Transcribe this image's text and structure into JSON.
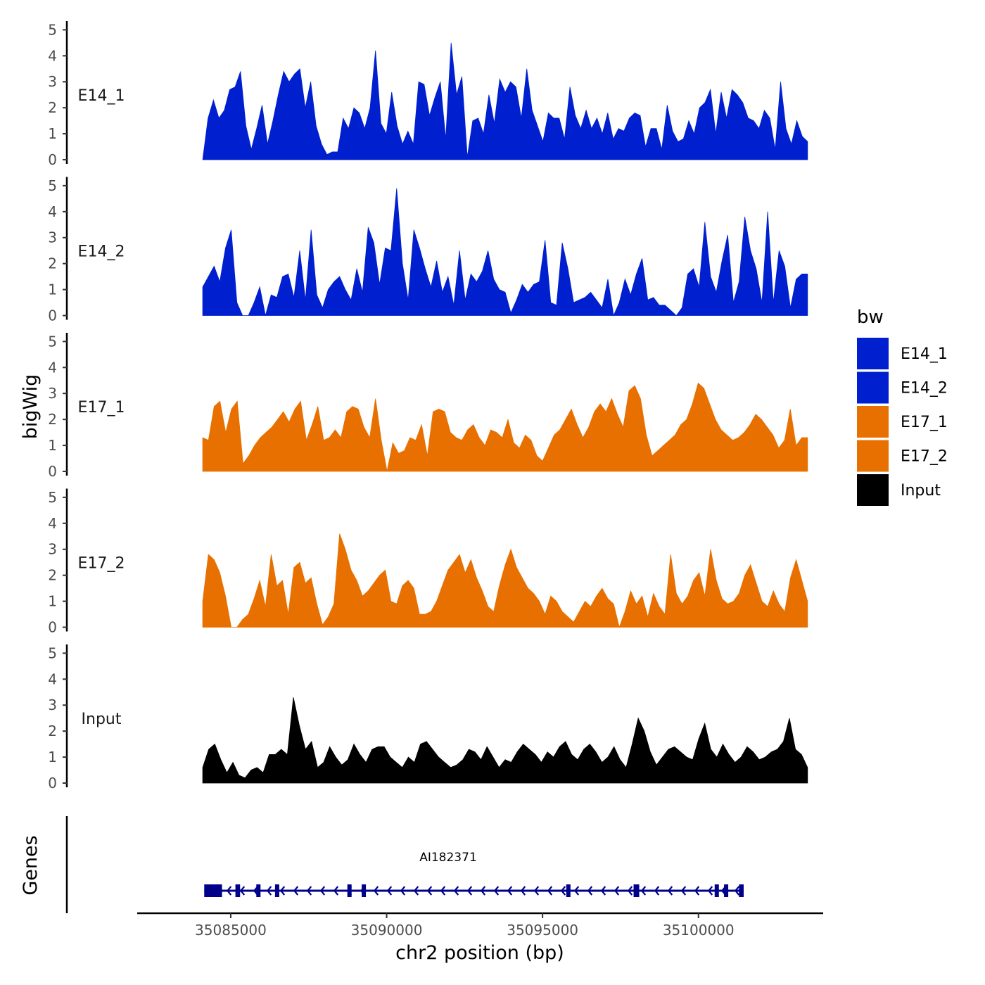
{
  "chart_data": {
    "type": "area",
    "chromosome": "chr2",
    "xlim": [
      35082000,
      35104000
    ],
    "region": [
      35084100,
      35103500
    ],
    "x_ticks": [
      35085000,
      35090000,
      35095000,
      35100000
    ],
    "x_tick_labels": [
      "35085000",
      "35090000",
      "35095000",
      "35100000"
    ],
    "xlabel": "chr2 position (bp)",
    "ylabel": "bigWig",
    "ylim": [
      0,
      5.2
    ],
    "y_ticks": [
      0,
      1,
      2,
      3,
      4,
      5
    ],
    "y_tick_labels": [
      "0",
      "1",
      "2",
      "3",
      "4",
      "5"
    ],
    "legend_title": "bw",
    "series": [
      {
        "name": "E14_1",
        "color": "#0020D0",
        "values": [
          0.0,
          1.6,
          2.3,
          1.6,
          1.9,
          2.7,
          2.8,
          3.4,
          1.3,
          0.4,
          1.2,
          2.1,
          0.6,
          1.5,
          2.5,
          3.4,
          3.0,
          3.3,
          3.5,
          2.0,
          3.0,
          1.3,
          0.6,
          0.2,
          0.3,
          0.3,
          1.6,
          1.2,
          2.0,
          1.8,
          1.2,
          2.0,
          4.2,
          1.4,
          1.0,
          2.6,
          1.3,
          0.6,
          1.1,
          0.6,
          3.0,
          2.9,
          1.7,
          2.4,
          3.0,
          0.8,
          4.5,
          2.5,
          3.2,
          0.1,
          1.5,
          1.6,
          1.0,
          2.5,
          1.4,
          3.1,
          2.6,
          3.0,
          2.8,
          1.6,
          3.5,
          1.9,
          1.3,
          0.7,
          1.8,
          1.6,
          1.6,
          0.8,
          2.8,
          1.7,
          1.2,
          1.9,
          1.2,
          1.6,
          1.0,
          1.8,
          0.8,
          1.2,
          1.1,
          1.6,
          1.8,
          1.7,
          0.5,
          1.2,
          1.2,
          0.4,
          2.1,
          1.1,
          0.7,
          0.8,
          1.5,
          1.0,
          2.0,
          2.2,
          2.7,
          1.0,
          2.6,
          1.6,
          2.7,
          2.5,
          2.2,
          1.6,
          1.5,
          1.2,
          1.9,
          1.6,
          0.4,
          3.0,
          1.2,
          0.6,
          1.5,
          0.9,
          0.7
        ]
      },
      {
        "name": "E14_2",
        "color": "#0020D0",
        "values": [
          1.1,
          1.5,
          1.9,
          1.3,
          2.6,
          3.3,
          0.5,
          0.0,
          0.0,
          0.5,
          1.1,
          0.0,
          0.8,
          0.7,
          1.5,
          1.6,
          0.7,
          2.5,
          0.6,
          3.3,
          0.8,
          0.3,
          1.0,
          1.3,
          1.5,
          1.0,
          0.6,
          1.8,
          0.9,
          3.4,
          2.8,
          1.2,
          2.6,
          2.5,
          4.9,
          2.0,
          0.6,
          3.3,
          2.6,
          1.8,
          1.1,
          2.1,
          0.9,
          1.5,
          0.4,
          2.5,
          0.6,
          1.6,
          1.3,
          1.7,
          2.5,
          1.4,
          1.0,
          0.9,
          0.1,
          0.6,
          1.2,
          0.9,
          1.2,
          1.3,
          2.9,
          0.5,
          0.4,
          2.8,
          1.8,
          0.5,
          0.6,
          0.7,
          0.9,
          0.6,
          0.3,
          1.4,
          0.0,
          0.5,
          1.4,
          0.8,
          1.6,
          2.2,
          0.6,
          0.7,
          0.4,
          0.4,
          0.2,
          0.0,
          0.3,
          1.6,
          1.8,
          1.1,
          3.6,
          1.5,
          0.9,
          2.1,
          3.1,
          0.5,
          1.3,
          3.8,
          2.5,
          1.8,
          0.5,
          4.0,
          0.5,
          2.5,
          1.9,
          0.3,
          1.4,
          1.6,
          1.6
        ]
      },
      {
        "name": "E17_1",
        "color": "#E87000",
        "values": [
          1.3,
          1.2,
          2.5,
          2.7,
          1.5,
          2.4,
          2.7,
          0.3,
          0.6,
          1.0,
          1.3,
          1.5,
          1.7,
          2.0,
          2.3,
          1.9,
          2.4,
          2.7,
          1.2,
          1.8,
          2.5,
          1.2,
          1.3,
          1.6,
          1.3,
          2.3,
          2.5,
          2.4,
          1.7,
          1.3,
          2.8,
          1.2,
          0.0,
          1.1,
          0.7,
          0.8,
          1.3,
          1.2,
          1.8,
          0.6,
          2.3,
          2.4,
          2.3,
          1.5,
          1.3,
          1.2,
          1.6,
          1.8,
          1.3,
          1.0,
          1.6,
          1.5,
          1.3,
          2.0,
          1.1,
          0.9,
          1.4,
          1.2,
          0.6,
          0.4,
          0.9,
          1.4,
          1.6,
          2.0,
          2.4,
          1.8,
          1.3,
          1.7,
          2.3,
          2.6,
          2.3,
          2.8,
          2.2,
          1.7,
          3.1,
          3.3,
          2.8,
          1.4,
          0.6,
          0.8,
          1.0,
          1.2,
          1.4,
          1.8,
          2.0,
          2.6,
          3.4,
          3.2,
          2.6,
          2.0,
          1.6,
          1.4,
          1.2,
          1.3,
          1.5,
          1.8,
          2.2,
          2.0,
          1.7,
          1.4,
          0.9,
          1.2,
          2.4,
          1.0,
          1.3,
          1.3
        ]
      },
      {
        "name": "E17_2",
        "color": "#E87000",
        "values": [
          1.0,
          2.8,
          2.6,
          2.1,
          1.2,
          0.0,
          0.0,
          0.3,
          0.5,
          1.1,
          1.8,
          0.8,
          2.8,
          1.6,
          1.8,
          0.5,
          2.3,
          2.5,
          1.7,
          1.9,
          0.9,
          0.1,
          0.4,
          0.9,
          3.6,
          3.0,
          2.2,
          1.8,
          1.2,
          1.4,
          1.7,
          2.0,
          2.2,
          1.0,
          0.9,
          1.6,
          1.8,
          1.5,
          0.5,
          0.5,
          0.6,
          1.0,
          1.6,
          2.2,
          2.5,
          2.8,
          2.1,
          2.6,
          1.9,
          1.4,
          0.8,
          0.6,
          1.6,
          2.4,
          3.0,
          2.3,
          1.9,
          1.5,
          1.3,
          1.0,
          0.5,
          1.2,
          1.0,
          0.6,
          0.4,
          0.2,
          0.6,
          1.0,
          0.8,
          1.2,
          1.5,
          1.1,
          0.9,
          0.0,
          0.6,
          1.4,
          0.9,
          1.2,
          0.4,
          1.3,
          0.8,
          0.5,
          2.8,
          1.3,
          0.9,
          1.2,
          1.8,
          2.1,
          1.2,
          3.0,
          1.8,
          1.1,
          0.9,
          1.0,
          1.3,
          2.0,
          2.4,
          1.7,
          1.0,
          0.8,
          1.4,
          0.9,
          0.6,
          1.9,
          2.6,
          1.8,
          1.0
        ]
      },
      {
        "name": "Input",
        "color": "#000000",
        "values": [
          0.6,
          1.3,
          1.5,
          0.9,
          0.4,
          0.8,
          0.3,
          0.2,
          0.5,
          0.6,
          0.4,
          1.1,
          1.1,
          1.3,
          1.1,
          3.3,
          2.2,
          1.3,
          1.6,
          0.6,
          0.8,
          1.4,
          1.0,
          0.7,
          0.9,
          1.5,
          1.1,
          0.8,
          1.3,
          1.4,
          1.4,
          1.0,
          0.8,
          0.6,
          1.0,
          0.8,
          1.5,
          1.6,
          1.3,
          1.0,
          0.8,
          0.6,
          0.7,
          0.9,
          1.3,
          1.2,
          0.9,
          1.4,
          1.0,
          0.6,
          0.9,
          0.8,
          1.2,
          1.5,
          1.3,
          1.1,
          0.8,
          1.2,
          1.0,
          1.4,
          1.6,
          1.1,
          0.9,
          1.3,
          1.5,
          1.2,
          0.8,
          1.0,
          1.4,
          0.9,
          0.6,
          1.5,
          2.5,
          2.0,
          1.2,
          0.7,
          1.0,
          1.3,
          1.4,
          1.2,
          1.0,
          0.9,
          1.7,
          2.3,
          1.3,
          1.0,
          1.5,
          1.1,
          0.8,
          1.0,
          1.4,
          1.2,
          0.9,
          1.0,
          1.2,
          1.3,
          1.6,
          2.5,
          1.3,
          1.1,
          0.6
        ]
      }
    ],
    "genes": {
      "title": "Genes",
      "name": "AI182371",
      "strand": "-",
      "start": 35084150,
      "end": 35101450,
      "color": "#00008B",
      "exons": [
        [
          35084150,
          35084720
        ],
        [
          35085150,
          35085300
        ],
        [
          35085820,
          35085920
        ],
        [
          35086420,
          35086500
        ],
        [
          35088740,
          35088860
        ],
        [
          35089200,
          35089280
        ],
        [
          35095760,
          35095880
        ],
        [
          35097920,
          35098100
        ],
        [
          35100520,
          35100640
        ],
        [
          35100820,
          35100940
        ],
        [
          35101300,
          35101450
        ]
      ]
    }
  }
}
